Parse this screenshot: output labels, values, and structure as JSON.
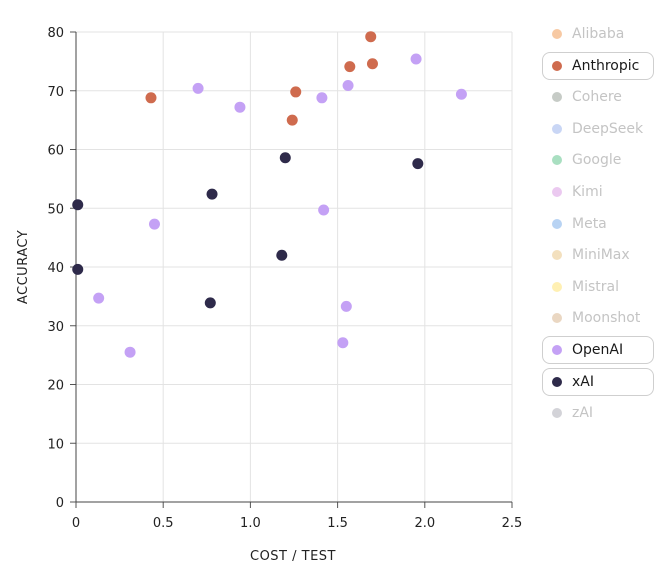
{
  "chart_data": {
    "type": "scatter",
    "xlabel": "COST / TEST",
    "ylabel": "ACCURACY",
    "xlim": [
      0,
      2.5
    ],
    "ylim": [
      0,
      80
    ],
    "x_ticks": [
      "0",
      "0.5",
      "1.0",
      "1.5",
      "2.0",
      "2.5"
    ],
    "x_tick_values": [
      0,
      0.5,
      1.0,
      1.5,
      2.0,
      2.5
    ],
    "y_ticks": [
      "0",
      "10",
      "20",
      "30",
      "40",
      "50",
      "60",
      "70",
      "80"
    ],
    "y_tick_values": [
      0,
      10,
      20,
      30,
      40,
      50,
      60,
      70,
      80
    ],
    "grid": true,
    "legend_position": "right",
    "series": [
      {
        "name": "Anthropic",
        "color": "#cf6b4e",
        "points": [
          [
            0.43,
            68.8
          ],
          [
            1.24,
            65.0
          ],
          [
            1.26,
            69.8
          ],
          [
            1.57,
            74.1
          ],
          [
            1.69,
            79.2
          ],
          [
            1.7,
            74.6
          ]
        ]
      },
      {
        "name": "OpenAI",
        "color": "#c4a1f5",
        "points": [
          [
            0.13,
            34.7
          ],
          [
            0.31,
            25.5
          ],
          [
            0.45,
            47.3
          ],
          [
            0.7,
            70.4
          ],
          [
            0.94,
            67.2
          ],
          [
            1.41,
            68.8
          ],
          [
            1.42,
            49.7
          ],
          [
            1.53,
            27.1
          ],
          [
            1.55,
            33.3
          ],
          [
            1.56,
            70.9
          ],
          [
            1.95,
            75.4
          ],
          [
            2.21,
            69.4
          ]
        ]
      },
      {
        "name": "xAI",
        "color": "#2e2a4a",
        "points": [
          [
            0.01,
            50.6
          ],
          [
            0.01,
            39.6
          ],
          [
            0.77,
            33.9
          ],
          [
            0.78,
            52.4
          ],
          [
            1.18,
            42.0
          ],
          [
            1.2,
            58.6
          ],
          [
            1.96,
            57.6
          ]
        ]
      }
    ]
  },
  "legend": {
    "items": [
      {
        "label": "Alibaba",
        "color": "#f7c9a3",
        "active": false
      },
      {
        "label": "Anthropic",
        "color": "#cf6b4e",
        "active": true
      },
      {
        "label": "Cohere",
        "color": "#c6cbc6",
        "active": false
      },
      {
        "label": "DeepSeek",
        "color": "#c9d6f5",
        "active": false
      },
      {
        "label": "Google",
        "color": "#a9dfc1",
        "active": false
      },
      {
        "label": "Kimi",
        "color": "#ebc9f0",
        "active": false
      },
      {
        "label": "Meta",
        "color": "#b8d3f3",
        "active": false
      },
      {
        "label": "MiniMax",
        "color": "#f3e0be",
        "active": false
      },
      {
        "label": "Mistral",
        "color": "#fff0b3",
        "active": false
      },
      {
        "label": "Moonshot",
        "color": "#ead7c2",
        "active": false
      },
      {
        "label": "OpenAI",
        "color": "#c4a1f5",
        "active": true
      },
      {
        "label": "xAI",
        "color": "#2e2a4a",
        "active": true
      },
      {
        "label": "zAI",
        "color": "#d3d3d8",
        "active": false
      }
    ]
  }
}
